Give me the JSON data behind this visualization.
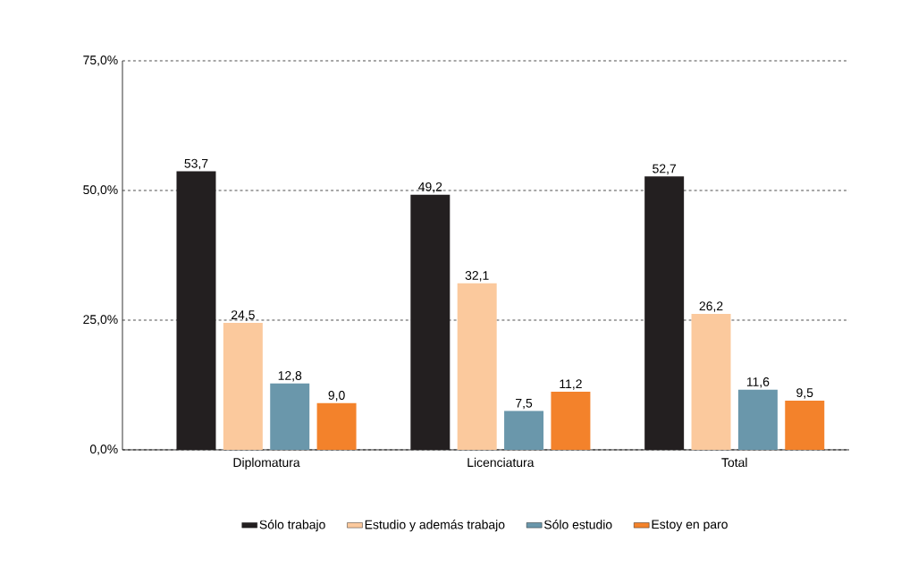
{
  "chart_data": {
    "type": "bar",
    "categories": [
      "Diplomatura",
      "Licenciatura",
      "Total"
    ],
    "series": [
      {
        "name": "Sólo trabajo",
        "color": "#231f20",
        "values": [
          53.7,
          49.2,
          52.7
        ],
        "value_labels": [
          "53,7",
          "49,2",
          "52,7"
        ]
      },
      {
        "name": "Estudio y además trabajo",
        "color": "#fbc99d",
        "values": [
          24.5,
          32.1,
          26.2
        ],
        "value_labels": [
          "24,5",
          "32,1",
          "26,2"
        ]
      },
      {
        "name": "Sólo estudio",
        "color": "#6a97ab",
        "values": [
          12.8,
          7.5,
          11.6
        ],
        "value_labels": [
          "12,8",
          "7,5",
          "11,6"
        ]
      },
      {
        "name": "Estoy en paro",
        "color": "#f3822b",
        "values": [
          9.0,
          11.2,
          9.5
        ],
        "value_labels": [
          "9,0",
          "11,2",
          "9,5"
        ]
      }
    ],
    "ylim": [
      0,
      75
    ],
    "yticks": [
      {
        "value": 0,
        "label": "0,0%"
      },
      {
        "value": 25,
        "label": "25,0%"
      },
      {
        "value": 50,
        "label": "50,0%"
      },
      {
        "value": 75,
        "label": "75,0%"
      }
    ],
    "grid": "y",
    "legend": "bottom"
  }
}
